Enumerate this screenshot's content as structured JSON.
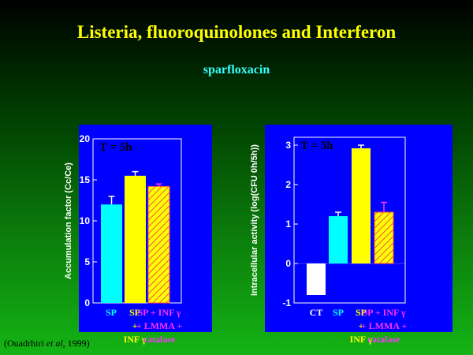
{
  "title": "Listeria, fluoroquinolones and Interferon",
  "subtitle": "sparfloxacin",
  "citation": {
    "prefix": "(Ouadrhiri ",
    "italic": "et al",
    "suffix": ", 1999)"
  },
  "colors": {
    "panel_bg": "#0000ff",
    "cyan": "#00ffff",
    "yellow": "#ffff00",
    "white": "#ffffff",
    "magenta": "#ff33ff",
    "hatch": "#ff4d4d"
  },
  "chart_data": [
    {
      "type": "bar",
      "annotation": "T = 5h",
      "ylabel": "Accumulation factor (Cc/Ce)",
      "ylim": [
        0,
        20
      ],
      "yticks": [
        0,
        5,
        10,
        15,
        20
      ],
      "categories": [
        {
          "lines": [
            "SP"
          ],
          "color": "cyan",
          "value": 12,
          "error": 1.0,
          "fill": "cyan"
        },
        {
          "lines": [
            "SP",
            "+",
            "INF γ"
          ],
          "color": "yellow",
          "value": 15.5,
          "error": 0.5,
          "fill": "yellow"
        },
        {
          "lines": [
            "SP + INF γ",
            "+ LMMA +",
            "catalase"
          ],
          "color": "magenta",
          "value": 14.2,
          "error": 0.3,
          "fill": "hatch"
        }
      ]
    },
    {
      "type": "bar",
      "annotation": "T = 5h",
      "ylabel": "Intracellular activity (log(CFU 0h/5h))",
      "ylim": [
        -1,
        3.2
      ],
      "yticks": [
        -1,
        0,
        1,
        2,
        3
      ],
      "categories": [
        {
          "lines": [
            "CT"
          ],
          "color": "white",
          "value": -0.8,
          "error": 0,
          "fill": "white"
        },
        {
          "lines": [
            "SP"
          ],
          "color": "cyan",
          "value": 1.2,
          "error": 0.1,
          "fill": "cyan"
        },
        {
          "lines": [
            "SP",
            "+",
            "INF γ"
          ],
          "color": "yellow",
          "value": 2.92,
          "error": 0.08,
          "fill": "yellow"
        },
        {
          "lines": [
            "SP + INF γ",
            "+ LMMA +",
            "catalase"
          ],
          "color": "magenta",
          "value": 1.3,
          "error": 0.25,
          "fill": "hatch"
        }
      ]
    }
  ]
}
